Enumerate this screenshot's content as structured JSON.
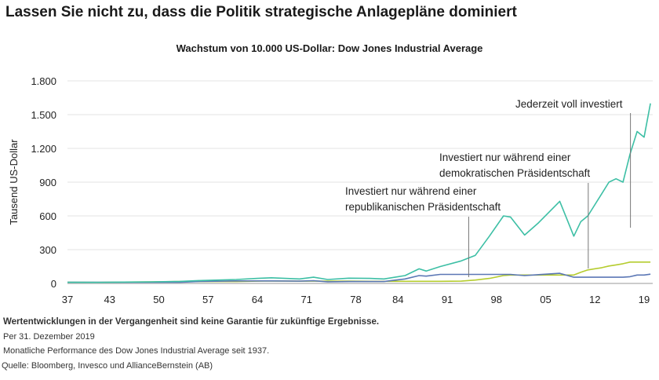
{
  "title": "Lassen Sie nicht zu, dass die Politik strategische Anlagepläne dominiert",
  "chart_data": {
    "type": "line",
    "title": "Wachstum von 10.000 US-Dollar: Dow Jones Industrial Average",
    "ylabel": "Tausend US-Dollar",
    "xlabel": "",
    "xlim": [
      1937,
      2020
    ],
    "ylim": [
      0,
      1800
    ],
    "yticks": [
      0,
      300,
      600,
      900,
      1200,
      1500,
      1800
    ],
    "ytick_labels": [
      "0",
      "300",
      "600",
      "900",
      "1.200",
      "1.500",
      "1.800"
    ],
    "xticks": [
      1937,
      1943,
      1950,
      1957,
      1964,
      1971,
      1978,
      1984,
      1991,
      1998,
      2005,
      2012,
      2019
    ],
    "xtick_labels": [
      "37",
      "43",
      "50",
      "57",
      "64",
      "71",
      "78",
      "84",
      "91",
      "98",
      "05",
      "12",
      "19"
    ],
    "grid": true,
    "x": [
      1937,
      1941,
      1945,
      1949,
      1953,
      1956,
      1961,
      1964,
      1966,
      1970,
      1972,
      1974,
      1977,
      1980,
      1982,
      1985,
      1987,
      1988,
      1990,
      1993,
      1995,
      1997,
      1999,
      2000,
      2002,
      2004,
      2007,
      2009,
      2010,
      2011,
      2013,
      2014,
      2015,
      2016,
      2017,
      2018,
      2019,
      2019.9
    ],
    "series": [
      {
        "name": "Jederzeit voll investiert",
        "color": "#3dbfa5",
        "values": [
          10,
          9,
          12,
          14,
          18,
          26,
          35,
          45,
          50,
          40,
          55,
          35,
          47,
          45,
          40,
          70,
          130,
          110,
          150,
          200,
          250,
          420,
          600,
          590,
          430,
          540,
          730,
          420,
          550,
          600,
          800,
          900,
          930,
          900,
          1150,
          1350,
          1300,
          1600
        ]
      },
      {
        "name": "Investiert nur während einer republikanischen Präsidentschaft",
        "color": "#5b77b5",
        "values": [
          10,
          10,
          10,
          10,
          10,
          18,
          22,
          22,
          22,
          20,
          24,
          15,
          17,
          17,
          17,
          40,
          70,
          65,
          80,
          80,
          80,
          80,
          80,
          80,
          70,
          78,
          90,
          55,
          55,
          55,
          55,
          55,
          55,
          55,
          60,
          75,
          75,
          82
        ]
      },
      {
        "name": "Investiert nur während einer demokratischen Präsidentschaft",
        "color": "#b5cc2e",
        "values": [
          10,
          9,
          12,
          14,
          17,
          17,
          17,
          20,
          22,
          20,
          20,
          20,
          20,
          19,
          19,
          19,
          19,
          19,
          19,
          20,
          30,
          45,
          70,
          75,
          75,
          75,
          75,
          75,
          100,
          120,
          140,
          155,
          165,
          175,
          190,
          190,
          190,
          190
        ]
      }
    ],
    "annotations": [
      {
        "text_lines": [
          "Investiert nur während einer",
          "republikanischen Präsidentschaft"
        ],
        "x": 1994
      },
      {
        "text_lines": [
          "Investiert nur während einer",
          "demokratischen Präsidentschaft"
        ],
        "x": 2011
      },
      {
        "text_lines": [
          "Jederzeit voll investiert"
        ],
        "x": 2017
      }
    ]
  },
  "footer": {
    "disclaimer": "Wertentwicklungen in der Vergangenheit sind keine Garantie für zukünftige Ergebnisse.",
    "date": "Per 31. Dezember 2019",
    "note": "Monatliche Performance des Dow Jones Industrial Average seit 1937.",
    "source": "Quelle: Bloomberg, Invesco und AllianceBernstein (AB)"
  }
}
